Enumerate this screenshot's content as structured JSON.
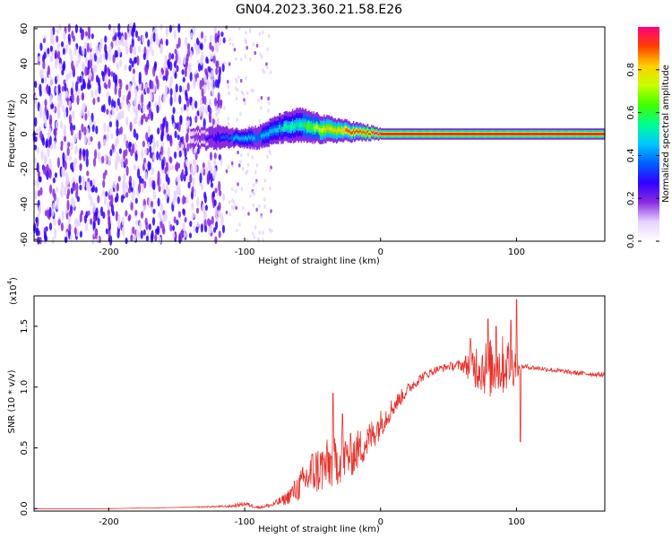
{
  "figure": {
    "title": "GN04.2023.360.21.58.E26"
  },
  "colors": {
    "snr_line": "#e8302a",
    "ridge_line": "#e0202a",
    "frame": "#000000",
    "colormap": [
      "#ffffff",
      "#e6d2ff",
      "#8a2be2",
      "#3000ff",
      "#0060ff",
      "#00c8ff",
      "#00ff90",
      "#40ff00",
      "#c8ff00",
      "#ffd000",
      "#ff4000",
      "#ff0080"
    ]
  },
  "chart_data": [
    {
      "type": "heatmap",
      "name_in_image": "spectrogram",
      "xlabel": "Height of straight line (km)",
      "ylabel": "Frequency (Hz)",
      "xlim": [
        -255,
        165
      ],
      "ylim": [
        -61,
        61
      ],
      "xticks": [
        -200,
        -100,
        0,
        100
      ],
      "yticks": [
        -60,
        -40,
        -20,
        0,
        20,
        40,
        60
      ],
      "colorbar": {
        "label": "Normalized spectral amplitude",
        "range": [
          0.0,
          1.0
        ],
        "ticks": [
          "0.0",
          "0.2",
          "0.4",
          "0.6",
          "0.8"
        ]
      },
      "noise_region_x": [
        -255,
        -115
      ],
      "scattered_region_x": [
        -115,
        -80
      ],
      "signal_band": [
        {
          "x": -140,
          "freq_center": -2,
          "freq_halfwidth": 3,
          "amp": 0.15
        },
        {
          "x": -120,
          "freq_center": -2,
          "freq_halfwidth": 4,
          "amp": 0.3
        },
        {
          "x": -105,
          "freq_center": -2,
          "freq_halfwidth": 3,
          "amp": 0.45
        },
        {
          "x": -90,
          "freq_center": -2,
          "freq_halfwidth": 4,
          "amp": 0.4
        },
        {
          "x": -75,
          "freq_center": 3,
          "freq_halfwidth": 5,
          "amp": 0.5
        },
        {
          "x": -60,
          "freq_center": 5,
          "freq_halfwidth": 6,
          "amp": 0.55
        },
        {
          "x": -45,
          "freq_center": 3,
          "freq_halfwidth": 5,
          "amp": 0.75
        },
        {
          "x": -30,
          "freq_center": 2,
          "freq_halfwidth": 4,
          "amp": 0.85
        },
        {
          "x": -15,
          "freq_center": 1,
          "freq_halfwidth": 3,
          "amp": 0.9
        },
        {
          "x": 0,
          "freq_center": 0,
          "freq_halfwidth": 2,
          "amp": 1.0
        },
        {
          "x": 50,
          "freq_center": 0,
          "freq_halfwidth": 2,
          "amp": 1.0
        },
        {
          "x": 100,
          "freq_center": 0,
          "freq_halfwidth": 2,
          "amp": 1.0
        },
        {
          "x": 165,
          "freq_center": 0,
          "freq_halfwidth": 2,
          "amp": 1.0
        }
      ]
    },
    {
      "type": "line",
      "name_in_image": "snr",
      "xlabel": "Height of straight line (km)",
      "ylabel": "SNR (10 * v/v)",
      "multiplier_label": "(x10",
      "multiplier_exp": "4",
      "multiplier_close": ")",
      "xlim": [
        -255,
        165
      ],
      "ylim": [
        -0.02,
        1.75
      ],
      "xticks": [
        -200,
        -100,
        0,
        100
      ],
      "yticks": [
        0.0,
        0.5,
        1.0,
        1.5
      ],
      "yticklabels": [
        "0.0",
        "0.5",
        "1.0",
        "1.5"
      ],
      "series": [
        {
          "x": [
            -255,
            -200,
            -150,
            -110,
            -100,
            -90,
            -80,
            -70,
            -60,
            -50,
            -40,
            -30,
            -20,
            -10,
            0,
            10,
            20,
            30,
            40,
            50,
            60,
            70,
            80,
            90,
            98,
            102,
            105,
            120,
            140,
            165
          ],
          "y": [
            0.0,
            0.0,
            0.01,
            0.02,
            0.04,
            0.01,
            0.03,
            0.08,
            0.18,
            0.3,
            0.35,
            0.4,
            0.45,
            0.55,
            0.7,
            0.85,
            0.98,
            1.08,
            1.14,
            1.17,
            1.18,
            1.18,
            1.15,
            1.18,
            1.2,
            1.15,
            1.17,
            1.15,
            1.12,
            1.1
          ],
          "noise": [
            0.0,
            0.0,
            0.0,
            0.01,
            0.02,
            0.01,
            0.02,
            0.05,
            0.12,
            0.2,
            0.22,
            0.2,
            0.18,
            0.15,
            0.12,
            0.08,
            0.05,
            0.04,
            0.03,
            0.03,
            0.05,
            0.2,
            0.25,
            0.25,
            0.2,
            0.03,
            0.02,
            0.02,
            0.02,
            0.02
          ]
        }
      ],
      "spikes": [
        {
          "x": -35,
          "y": 0.95
        },
        {
          "x": -28,
          "y": 0.78
        },
        {
          "x": 66,
          "y": 1.4
        },
        {
          "x": 79,
          "y": 1.56
        },
        {
          "x": 85,
          "y": 1.5
        },
        {
          "x": 96,
          "y": 1.55
        },
        {
          "x": 100,
          "y": 1.72
        },
        {
          "x": 103,
          "y": 1.7
        },
        {
          "x": 103,
          "y": 0.55
        }
      ]
    }
  ]
}
